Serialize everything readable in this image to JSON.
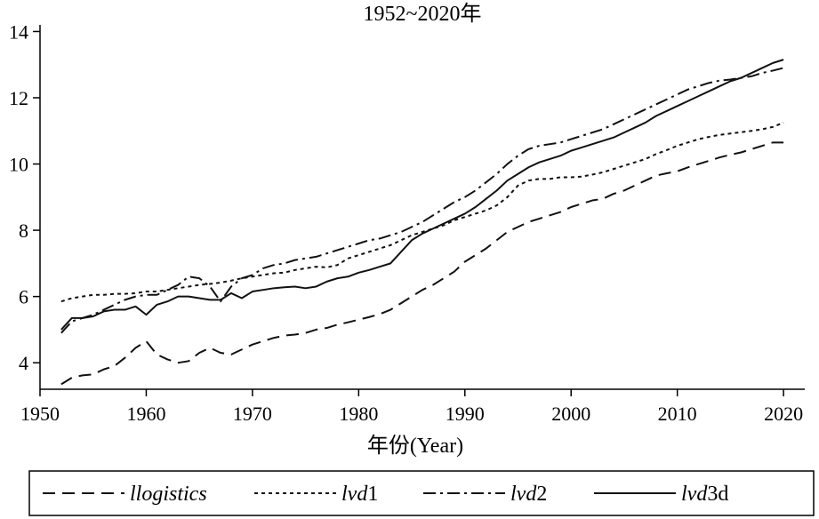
{
  "chart_data": {
    "type": "line",
    "title": "1952~2020年",
    "xlabel": "年份(Year)",
    "ylabel": "",
    "xlim": [
      1950,
      2022
    ],
    "ylim": [
      3.2,
      14.2
    ],
    "xticks": [
      1950,
      1960,
      1970,
      1980,
      1990,
      2000,
      2010,
      2020
    ],
    "yticks": [
      4,
      6,
      8,
      10,
      12,
      14
    ],
    "grid": false,
    "legend_position": "bottom",
    "x": [
      1952,
      1953,
      1954,
      1955,
      1956,
      1957,
      1958,
      1959,
      1960,
      1961,
      1962,
      1963,
      1964,
      1965,
      1966,
      1967,
      1968,
      1969,
      1970,
      1971,
      1972,
      1973,
      1974,
      1975,
      1976,
      1977,
      1978,
      1979,
      1980,
      1981,
      1982,
      1983,
      1984,
      1985,
      1986,
      1987,
      1988,
      1989,
      1990,
      1991,
      1992,
      1993,
      1994,
      1995,
      1996,
      1997,
      1998,
      1999,
      2000,
      2001,
      2002,
      2003,
      2004,
      2005,
      2006,
      2007,
      2008,
      2009,
      2010,
      2011,
      2012,
      2013,
      2014,
      2015,
      2016,
      2017,
      2018,
      2019,
      2020
    ],
    "series": [
      {
        "name": "llogistics",
        "legend_main": "llogistics",
        "legend_suffix": "",
        "style": "dashed",
        "values": [
          3.35,
          3.55,
          3.62,
          3.65,
          3.8,
          3.9,
          4.15,
          4.45,
          4.65,
          4.25,
          4.1,
          4.0,
          4.05,
          4.3,
          4.45,
          4.3,
          4.25,
          4.4,
          4.55,
          4.65,
          4.75,
          4.82,
          4.85,
          4.9,
          5.0,
          5.05,
          5.15,
          5.22,
          5.3,
          5.38,
          5.47,
          5.6,
          5.8,
          6.0,
          6.2,
          6.35,
          6.55,
          6.75,
          7.05,
          7.25,
          7.45,
          7.7,
          7.95,
          8.1,
          8.25,
          8.35,
          8.45,
          8.55,
          8.7,
          8.8,
          8.9,
          8.95,
          9.1,
          9.2,
          9.35,
          9.5,
          9.65,
          9.72,
          9.78,
          9.9,
          10.0,
          10.1,
          10.2,
          10.28,
          10.35,
          10.45,
          10.55,
          10.65,
          10.65
        ]
      },
      {
        "name": "lvd1",
        "legend_main": "lvd",
        "legend_suffix": "1",
        "style": "dotted",
        "values": [
          5.85,
          5.95,
          6.0,
          6.05,
          6.05,
          6.08,
          6.08,
          6.1,
          6.15,
          6.15,
          6.2,
          6.25,
          6.3,
          6.35,
          6.38,
          6.42,
          6.48,
          6.55,
          6.6,
          6.65,
          6.7,
          6.72,
          6.8,
          6.85,
          6.9,
          6.88,
          6.95,
          7.15,
          7.25,
          7.35,
          7.45,
          7.55,
          7.7,
          7.85,
          7.95,
          8.05,
          8.15,
          8.3,
          8.4,
          8.5,
          8.6,
          8.75,
          9.0,
          9.35,
          9.5,
          9.55,
          9.55,
          9.6,
          9.6,
          9.62,
          9.68,
          9.75,
          9.85,
          9.95,
          10.05,
          10.15,
          10.3,
          10.42,
          10.55,
          10.65,
          10.75,
          10.82,
          10.88,
          10.92,
          10.96,
          11.0,
          11.05,
          11.12,
          11.25
        ]
      },
      {
        "name": "lvd2",
        "legend_main": "lvd",
        "legend_suffix": "2",
        "style": "dashdot",
        "values": [
          4.9,
          5.25,
          5.35,
          5.45,
          5.6,
          5.75,
          5.9,
          6.0,
          6.05,
          6.05,
          6.2,
          6.35,
          6.6,
          6.55,
          6.3,
          5.85,
          6.3,
          6.55,
          6.65,
          6.85,
          6.95,
          7.0,
          7.1,
          7.15,
          7.2,
          7.3,
          7.4,
          7.5,
          7.6,
          7.7,
          7.75,
          7.85,
          7.95,
          8.1,
          8.25,
          8.45,
          8.65,
          8.85,
          9.0,
          9.2,
          9.45,
          9.7,
          10.0,
          10.25,
          10.45,
          10.55,
          10.6,
          10.65,
          10.75,
          10.85,
          10.95,
          11.05,
          11.2,
          11.35,
          11.5,
          11.65,
          11.8,
          11.95,
          12.1,
          12.25,
          12.35,
          12.45,
          12.52,
          12.55,
          12.6,
          12.65,
          12.75,
          12.82,
          12.9
        ]
      },
      {
        "name": "lvd3d",
        "legend_main": "lvd",
        "legend_suffix": "3d",
        "style": "solid",
        "values": [
          5.0,
          5.35,
          5.35,
          5.4,
          5.55,
          5.6,
          5.6,
          5.7,
          5.45,
          5.75,
          5.85,
          6.0,
          6.0,
          5.95,
          5.9,
          5.9,
          6.1,
          5.95,
          6.15,
          6.2,
          6.25,
          6.28,
          6.3,
          6.25,
          6.3,
          6.45,
          6.55,
          6.6,
          6.72,
          6.8,
          6.9,
          7.0,
          7.35,
          7.7,
          7.9,
          8.05,
          8.2,
          8.35,
          8.5,
          8.7,
          8.95,
          9.2,
          9.5,
          9.7,
          9.9,
          10.05,
          10.15,
          10.25,
          10.4,
          10.5,
          10.6,
          10.7,
          10.8,
          10.95,
          11.1,
          11.25,
          11.45,
          11.6,
          11.75,
          11.9,
          12.05,
          12.2,
          12.35,
          12.5,
          12.6,
          12.75,
          12.9,
          13.05,
          13.15
        ]
      }
    ]
  }
}
